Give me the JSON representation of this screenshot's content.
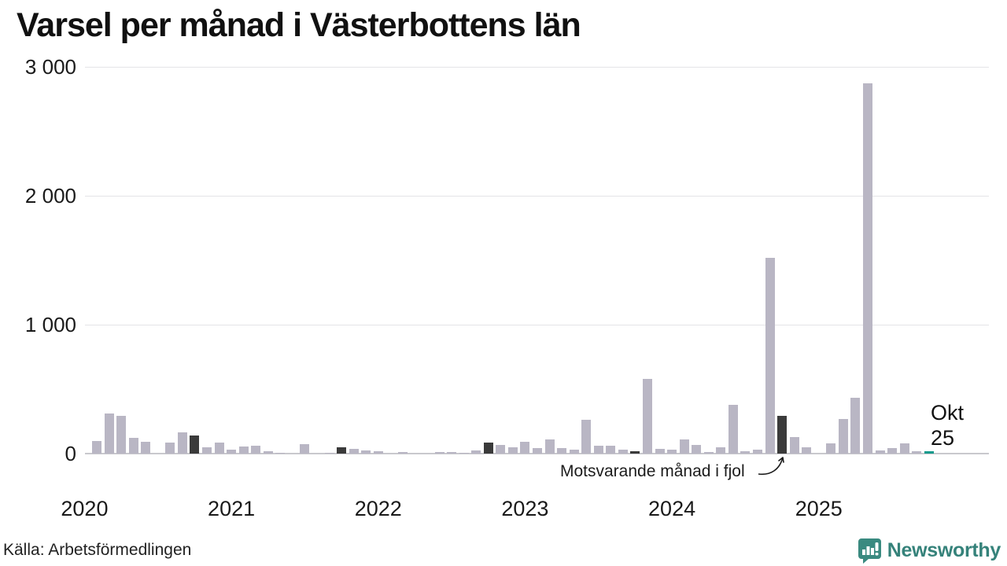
{
  "chart_data": {
    "type": "bar",
    "title": "Varsel per månad i Västerbottens län",
    "source": "Källa: Arbetsförmedlingen",
    "xlabel": "",
    "ylabel": "",
    "ylim": [
      0,
      3000
    ],
    "grid": "horizontal",
    "yticks": [
      {
        "value": 0,
        "label": "0"
      },
      {
        "value": 1000,
        "label": "1 000"
      },
      {
        "value": 2000,
        "label": "2 000"
      },
      {
        "value": 3000,
        "label": "3 000"
      }
    ],
    "year_labels": [
      {
        "label": "2020",
        "month_offset": -1
      },
      {
        "label": "2021",
        "month_offset": 11
      },
      {
        "label": "2022",
        "month_offset": 23
      },
      {
        "label": "2023",
        "month_offset": 35
      },
      {
        "label": "2024",
        "month_offset": 47
      },
      {
        "label": "2025",
        "month_offset": 59
      }
    ],
    "annotation": {
      "text": "Motsvarande månad i fjol",
      "target_month": "2024-10"
    },
    "current_point_label": {
      "line1": "Okt",
      "line2": "25",
      "month": "2025-10"
    },
    "colors": {
      "normal": "#b9b6c4",
      "dark": "#3a3a3a",
      "current": "#149a8c",
      "grid": "#e4e4e7",
      "baseline": "#c9c9cd",
      "brand": "#35827a"
    },
    "series": [
      {
        "month": "2020-02",
        "value": 95,
        "role": "normal"
      },
      {
        "month": "2020-03",
        "value": 310,
        "role": "normal"
      },
      {
        "month": "2020-04",
        "value": 293,
        "role": "normal"
      },
      {
        "month": "2020-05",
        "value": 122,
        "role": "normal"
      },
      {
        "month": "2020-06",
        "value": 89,
        "role": "normal"
      },
      {
        "month": "2020-07",
        "value": 0,
        "role": "normal"
      },
      {
        "month": "2020-08",
        "value": 85,
        "role": "normal"
      },
      {
        "month": "2020-09",
        "value": 163,
        "role": "normal"
      },
      {
        "month": "2020-10",
        "value": 140,
        "role": "dark"
      },
      {
        "month": "2020-11",
        "value": 49,
        "role": "normal"
      },
      {
        "month": "2020-12",
        "value": 87,
        "role": "normal"
      },
      {
        "month": "2021-01",
        "value": 32,
        "role": "normal"
      },
      {
        "month": "2021-02",
        "value": 53,
        "role": "normal"
      },
      {
        "month": "2021-03",
        "value": 60,
        "role": "normal"
      },
      {
        "month": "2021-04",
        "value": 20,
        "role": "normal"
      },
      {
        "month": "2021-05",
        "value": 6,
        "role": "normal"
      },
      {
        "month": "2021-06",
        "value": 0,
        "role": "normal"
      },
      {
        "month": "2021-07",
        "value": 73,
        "role": "normal"
      },
      {
        "month": "2021-08",
        "value": 0,
        "role": "normal"
      },
      {
        "month": "2021-09",
        "value": 8,
        "role": "normal"
      },
      {
        "month": "2021-10",
        "value": 47,
        "role": "dark"
      },
      {
        "month": "2021-11",
        "value": 35,
        "role": "normal"
      },
      {
        "month": "2021-12",
        "value": 22,
        "role": "normal"
      },
      {
        "month": "2022-01",
        "value": 18,
        "role": "normal"
      },
      {
        "month": "2022-02",
        "value": 0,
        "role": "normal"
      },
      {
        "month": "2022-03",
        "value": 10,
        "role": "normal"
      },
      {
        "month": "2022-04",
        "value": 0,
        "role": "normal"
      },
      {
        "month": "2022-05",
        "value": 0,
        "role": "normal"
      },
      {
        "month": "2022-06",
        "value": 10,
        "role": "normal"
      },
      {
        "month": "2022-07",
        "value": 12,
        "role": "normal"
      },
      {
        "month": "2022-08",
        "value": 8,
        "role": "normal"
      },
      {
        "month": "2022-09",
        "value": 22,
        "role": "normal"
      },
      {
        "month": "2022-10",
        "value": 83,
        "role": "dark"
      },
      {
        "month": "2022-11",
        "value": 69,
        "role": "normal"
      },
      {
        "month": "2022-12",
        "value": 49,
        "role": "normal"
      },
      {
        "month": "2023-01",
        "value": 93,
        "role": "normal"
      },
      {
        "month": "2023-02",
        "value": 43,
        "role": "normal"
      },
      {
        "month": "2023-03",
        "value": 108,
        "role": "normal"
      },
      {
        "month": "2023-04",
        "value": 44,
        "role": "normal"
      },
      {
        "month": "2023-05",
        "value": 29,
        "role": "normal"
      },
      {
        "month": "2023-06",
        "value": 260,
        "role": "normal"
      },
      {
        "month": "2023-07",
        "value": 61,
        "role": "normal"
      },
      {
        "month": "2023-08",
        "value": 63,
        "role": "normal"
      },
      {
        "month": "2023-09",
        "value": 29,
        "role": "normal"
      },
      {
        "month": "2023-10",
        "value": 20,
        "role": "dark"
      },
      {
        "month": "2023-11",
        "value": 580,
        "role": "normal"
      },
      {
        "month": "2023-12",
        "value": 39,
        "role": "normal"
      },
      {
        "month": "2024-01",
        "value": 29,
        "role": "normal"
      },
      {
        "month": "2024-02",
        "value": 108,
        "role": "normal"
      },
      {
        "month": "2024-03",
        "value": 69,
        "role": "normal"
      },
      {
        "month": "2024-04",
        "value": 12,
        "role": "normal"
      },
      {
        "month": "2024-05",
        "value": 47,
        "role": "normal"
      },
      {
        "month": "2024-06",
        "value": 380,
        "role": "normal"
      },
      {
        "month": "2024-07",
        "value": 20,
        "role": "normal"
      },
      {
        "month": "2024-08",
        "value": 30,
        "role": "normal"
      },
      {
        "month": "2024-09",
        "value": 1520,
        "role": "normal"
      },
      {
        "month": "2024-10",
        "value": 290,
        "role": "dark"
      },
      {
        "month": "2024-11",
        "value": 130,
        "role": "normal"
      },
      {
        "month": "2024-12",
        "value": 49,
        "role": "normal"
      },
      {
        "month": "2025-01",
        "value": 0,
        "role": "normal"
      },
      {
        "month": "2025-02",
        "value": 79,
        "role": "normal"
      },
      {
        "month": "2025-03",
        "value": 270,
        "role": "normal"
      },
      {
        "month": "2025-04",
        "value": 430,
        "role": "normal"
      },
      {
        "month": "2025-05",
        "value": 2870,
        "role": "normal"
      },
      {
        "month": "2025-06",
        "value": 22,
        "role": "normal"
      },
      {
        "month": "2025-07",
        "value": 43,
        "role": "normal"
      },
      {
        "month": "2025-08",
        "value": 77,
        "role": "normal"
      },
      {
        "month": "2025-09",
        "value": 16,
        "role": "normal"
      },
      {
        "month": "2025-10",
        "value": 20,
        "role": "current"
      }
    ]
  },
  "footer": {
    "source": "Källa: Arbetsförmedlingen",
    "brand": "Newsworthy"
  }
}
